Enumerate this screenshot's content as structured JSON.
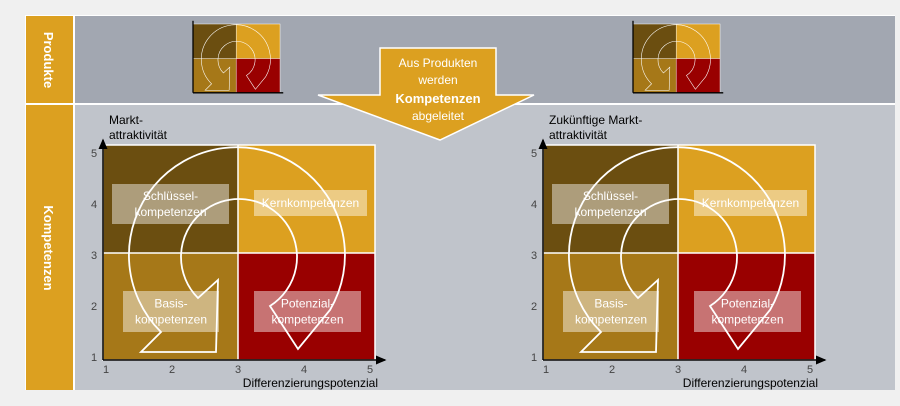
{
  "rows": {
    "top_label": "Produkte",
    "bottom_label": "Kompetenzen"
  },
  "arrow": {
    "line1": "Aus Produkten",
    "line2": "werden",
    "line3": "Kompetenzen",
    "line4": "abgeleitet"
  },
  "colors": {
    "frame": "#dca020",
    "top_bg": "#a2a7b1",
    "bottom_bg": "#c0c4cb",
    "q_dark": "#6b4e10",
    "q_gold": "#dca020",
    "q_brown": "#a67818",
    "q_red": "#990000"
  },
  "left_matrix": {
    "y_label_1": "Markt-",
    "y_label_2": "attraktivität",
    "x_label": "Differenzierungspotenzial",
    "q_top_left": [
      "Schlüssel-",
      "kompetenzen"
    ],
    "q_top_right": [
      "Kernkompetenzen"
    ],
    "q_bottom_left": [
      "Basis-",
      "kompetenzen"
    ],
    "q_bottom_right": [
      "Potenzial-",
      "kompetenzen"
    ],
    "y_ticks": [
      "1",
      "2",
      "3",
      "4",
      "5"
    ],
    "x_ticks": [
      "1",
      "2",
      "3",
      "4",
      "5"
    ]
  },
  "right_matrix": {
    "y_label_1": "Zukünftige Markt-",
    "y_label_2": "attraktivität",
    "x_label": "Differenzierungspotenzial",
    "q_top_left": [
      "Schlüssel-",
      "kompetenzen"
    ],
    "q_top_right": [
      "Kernkompetenzen"
    ],
    "q_bottom_left": [
      "Basis-",
      "kompetenzen"
    ],
    "q_bottom_right": [
      "Potenzial-",
      "kompetenzen"
    ],
    "y_ticks": [
      "1",
      "2",
      "3",
      "4",
      "5"
    ],
    "x_ticks": [
      "1",
      "2",
      "3",
      "4",
      "5"
    ]
  }
}
